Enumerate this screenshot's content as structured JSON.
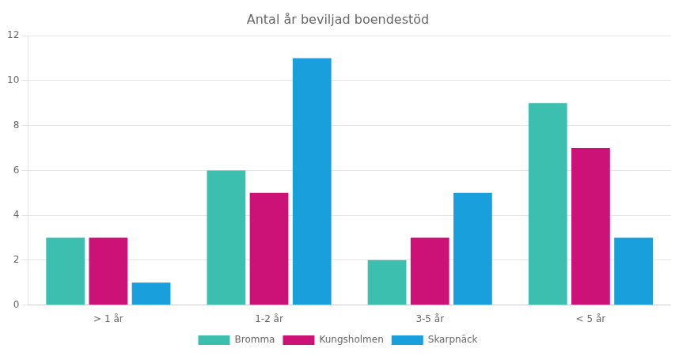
{
  "chart_data": {
    "type": "bar",
    "title": "Antal år beviljad boendestöd",
    "categories": [
      "> 1 år",
      "1-2 år",
      "3-5 år",
      "< 5 år"
    ],
    "series": [
      {
        "name": "Bromma",
        "color": "#3dbfb0",
        "values": [
          3,
          6,
          2,
          9
        ]
      },
      {
        "name": "Kungsholmen",
        "color": "#cc1177",
        "values": [
          3,
          5,
          3,
          7
        ]
      },
      {
        "name": "Skarpnäck",
        "color": "#1a9fdd",
        "values": [
          1,
          11,
          5,
          3
        ]
      }
    ],
    "ylim": [
      0,
      12
    ],
    "yticks": [
      0,
      2,
      4,
      6,
      8,
      10,
      12
    ],
    "grid": true,
    "legend": "bottom"
  }
}
